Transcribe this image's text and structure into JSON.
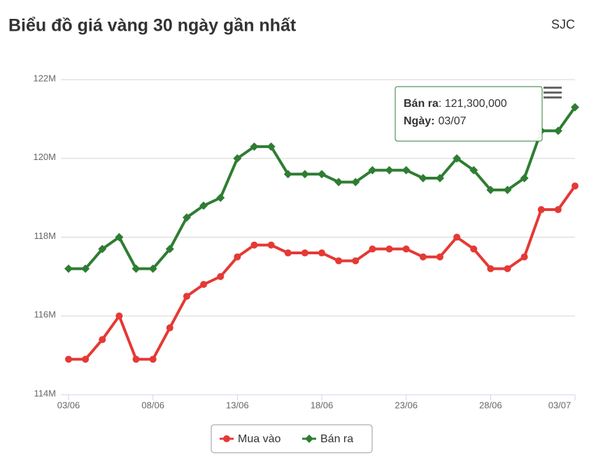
{
  "chart_data": {
    "type": "line",
    "title": "Biểu đồ giá vàng 30 ngày gần nhất",
    "subtitle": "SJC",
    "categories": [
      "03/06",
      null,
      null,
      null,
      null,
      "08/06",
      null,
      null,
      null,
      null,
      "13/06",
      null,
      null,
      null,
      null,
      "18/06",
      null,
      null,
      null,
      null,
      "23/06",
      null,
      null,
      null,
      null,
      "28/06",
      null,
      null,
      null,
      null,
      "03/07"
    ],
    "series": [
      {
        "name": "Mua vào",
        "color": "#e53935",
        "values": [
          114900000,
          114900000,
          115400000,
          116000000,
          114900000,
          114900000,
          115700000,
          116500000,
          116800000,
          117000000,
          117500000,
          117800000,
          117800000,
          117600000,
          117600000,
          117600000,
          117400000,
          117400000,
          117700000,
          117700000,
          117700000,
          117500000,
          117500000,
          118000000,
          117700000,
          117200000,
          117200000,
          117500000,
          118700000,
          118700000,
          119300000
        ]
      },
      {
        "name": "Bán ra",
        "color": "#2e7d32",
        "values": [
          117200000,
          117200000,
          117700000,
          118000000,
          117200000,
          117200000,
          117700000,
          118500000,
          118800000,
          119000000,
          120000000,
          120300000,
          120300000,
          119600000,
          119600000,
          119600000,
          119400000,
          119400000,
          119700000,
          119700000,
          119700000,
          119500000,
          119500000,
          120000000,
          119700000,
          119200000,
          119200000,
          119500000,
          120700000,
          120700000,
          121300000
        ]
      }
    ],
    "ylim": [
      114000000,
      122000000
    ],
    "yticks": [
      {
        "value": 114000000,
        "label": "114M"
      },
      {
        "value": 116000000,
        "label": "116M"
      },
      {
        "value": 118000000,
        "label": "118M"
      },
      {
        "value": 120000000,
        "label": "120M"
      },
      {
        "value": 122000000,
        "label": "122M"
      }
    ],
    "grid": true,
    "tooltip": {
      "series": "Bán ra",
      "value_label": ": 121,300,000",
      "date_label": "Ngày:",
      "date": "03/07"
    }
  }
}
